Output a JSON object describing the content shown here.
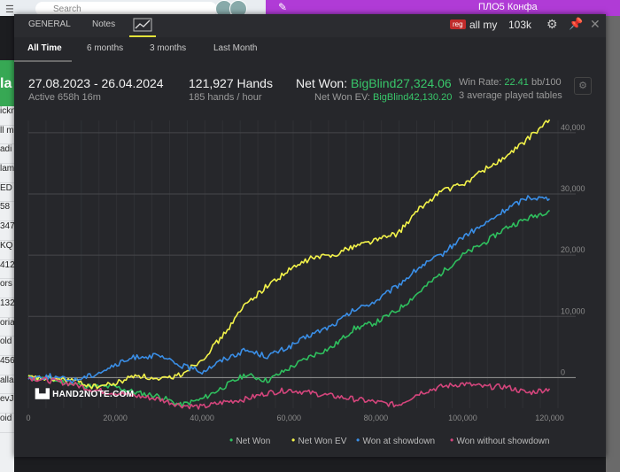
{
  "background": {
    "search_placeholder": "Search",
    "banner_text": "ПЛО5 Конфа",
    "green_letters": "la",
    "left_rows": [
      "ickn",
      "ll m",
      "adi",
      "lam",
      "ED",
      "58",
      "347",
      "KQ",
      "412",
      "ors",
      "132",
      "oria",
      "old",
      "456",
      "alla",
      "evJ",
      "oid"
    ]
  },
  "tabs": {
    "general": "GENERAL",
    "notes": "Notes"
  },
  "header": {
    "reg_badge": "reg",
    "player": "all my",
    "hands_short": "103k"
  },
  "periods": {
    "all_time": "All Time",
    "six_months": "6 months",
    "three_months": "3 months",
    "last_month": "Last Month"
  },
  "stats": {
    "date_range": "27.08.2023 - 26.04.2024",
    "active": "Active 658h 16m",
    "hands": "121,927 Hands",
    "hands_rate": "185 hands / hour",
    "net_won_label": "Net Won: ",
    "net_won_value": "BigBlind27,324.06",
    "net_won_ev_label": "Net Won  EV: ",
    "net_won_ev_value": "BigBlind42,130.20",
    "win_rate_label": "Win Rate: ",
    "win_rate_value": "22.41",
    "win_rate_unit": " bb/100",
    "tables": "3 average played tables"
  },
  "logo_text": "HAND2NOTE.COM",
  "colors": {
    "green": "#2fbf5e",
    "yellow": "#f3f34a",
    "blue": "#3a8ee6",
    "pink": "#d4457c"
  },
  "chart_data": {
    "type": "line",
    "xlim": [
      0,
      121927
    ],
    "ylim": [
      -5000,
      42000
    ],
    "x_ticks": [
      "0",
      "20,000",
      "40,000",
      "60,000",
      "80,000",
      "100,000",
      "120,000"
    ],
    "x_tick_values": [
      0,
      20000,
      40000,
      60000,
      80000,
      100000,
      120000
    ],
    "y_ticks": [
      "0",
      "10,000",
      "20,000",
      "30,000",
      "40,000"
    ],
    "y_tick_values": [
      0,
      10000,
      20000,
      30000,
      40000
    ],
    "grid": true,
    "legend_position": "bottom-right",
    "series": [
      {
        "name": "Net Won",
        "color": "#2fbf5e",
        "x": [
          0,
          5000,
          10000,
          15000,
          20000,
          25000,
          30000,
          35000,
          40000,
          45000,
          50000,
          55000,
          60000,
          65000,
          70000,
          75000,
          80000,
          85000,
          90000,
          95000,
          100000,
          105000,
          110000,
          115000,
          120000
        ],
        "y": [
          0,
          -300,
          -1000,
          -1500,
          -1500,
          -2500,
          -3000,
          -4500,
          -3500,
          -1500,
          500,
          -500,
          1500,
          3500,
          5000,
          8000,
          9000,
          11000,
          14000,
          17000,
          20000,
          22000,
          24500,
          26000,
          27324
        ]
      },
      {
        "name": "Net Won  EV",
        "color": "#f3f34a",
        "x": [
          0,
          5000,
          10000,
          15000,
          20000,
          25000,
          30000,
          35000,
          40000,
          45000,
          50000,
          55000,
          60000,
          65000,
          70000,
          75000,
          80000,
          85000,
          90000,
          95000,
          100000,
          105000,
          110000,
          115000,
          120000
        ],
        "y": [
          0,
          -200,
          -400,
          -1500,
          -1000,
          500,
          -500,
          500,
          3000,
          7000,
          12000,
          15000,
          17500,
          19500,
          20000,
          21500,
          22500,
          23500,
          27500,
          30500,
          31500,
          34000,
          36000,
          39000,
          42130
        ]
      },
      {
        "name": "Won at showdown",
        "color": "#3a8ee6",
        "x": [
          0,
          5000,
          10000,
          15000,
          20000,
          25000,
          30000,
          35000,
          40000,
          45000,
          50000,
          55000,
          60000,
          65000,
          70000,
          75000,
          80000,
          85000,
          90000,
          95000,
          100000,
          105000,
          110000,
          115000,
          120000
        ],
        "y": [
          0,
          200,
          -500,
          500,
          2000,
          3500,
          3500,
          2000,
          1000,
          3000,
          4500,
          3500,
          5000,
          7000,
          8500,
          11000,
          12500,
          15000,
          18000,
          20000,
          23000,
          25000,
          27500,
          29500,
          29200
        ]
      },
      {
        "name": "Won without showdown",
        "color": "#d4457c",
        "x": [
          0,
          5000,
          10000,
          15000,
          20000,
          25000,
          30000,
          35000,
          40000,
          45000,
          50000,
          55000,
          60000,
          65000,
          70000,
          75000,
          80000,
          85000,
          90000,
          95000,
          100000,
          105000,
          110000,
          115000,
          120000
        ],
        "y": [
          0,
          -500,
          -1000,
          -2000,
          -2500,
          -3000,
          -3500,
          -4500,
          -4800,
          -4000,
          -3500,
          -2500,
          -2000,
          -2500,
          -3000,
          -3500,
          -4000,
          -4500,
          -2500,
          -1500,
          -1000,
          -1500,
          -1500,
          -2500,
          -1800
        ]
      }
    ]
  }
}
